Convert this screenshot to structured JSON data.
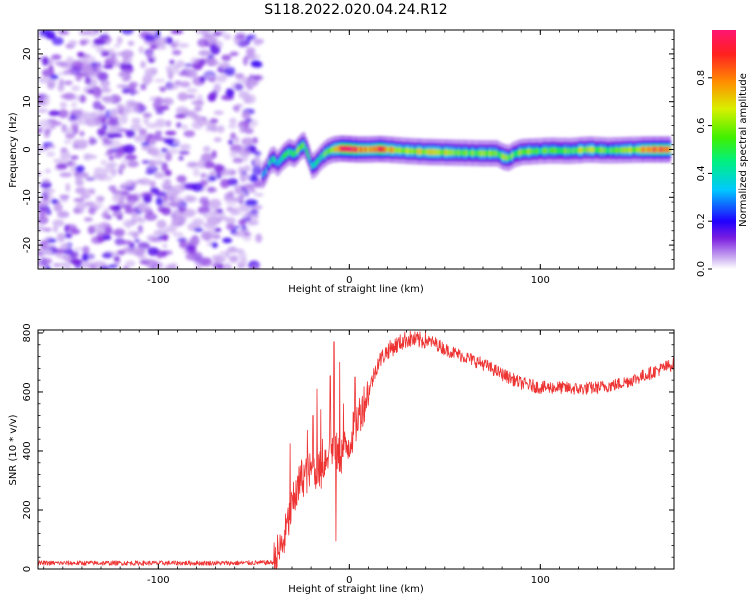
{
  "figure": {
    "title": "S118.2022.020.04.24.R12"
  },
  "chart_data": [
    {
      "type": "heatmap",
      "xlabel": "Height of straight line (km)",
      "ylabel": "Frequency (Hz)",
      "xlim": [
        -163,
        170
      ],
      "ylim": [
        -25,
        25
      ],
      "x_ticks": [
        -100,
        0,
        100
      ],
      "x_tick_labels": [
        "-100",
        "0",
        "100"
      ],
      "y_ticks": [
        -20,
        -10,
        0,
        10,
        20
      ],
      "y_tick_labels": [
        "-20",
        "-10",
        "0",
        "10",
        "20"
      ],
      "noise_region_x": [
        -163,
        -47
      ],
      "ridge": [
        {
          "x": -46,
          "y": -5.5,
          "a": 0.25
        },
        {
          "x": -44,
          "y": -4.5,
          "a": 0.3
        },
        {
          "x": -42,
          "y": -2.5,
          "a": 0.35
        },
        {
          "x": -40,
          "y": -2.0,
          "a": 0.4
        },
        {
          "x": -38,
          "y": -3.0,
          "a": 0.35
        },
        {
          "x": -35,
          "y": -1.5,
          "a": 0.45
        },
        {
          "x": -32,
          "y": -0.5,
          "a": 0.45
        },
        {
          "x": -29,
          "y": -1.0,
          "a": 0.5
        },
        {
          "x": -26,
          "y": 0.5,
          "a": 0.55
        },
        {
          "x": -24,
          "y": 1.0,
          "a": 0.5
        },
        {
          "x": -22,
          "y": -1.0,
          "a": 0.45
        },
        {
          "x": -20,
          "y": -3.5,
          "a": 0.4
        },
        {
          "x": -18,
          "y": -3.0,
          "a": 0.4
        },
        {
          "x": -15,
          "y": -1.5,
          "a": 0.45
        },
        {
          "x": -12,
          "y": -0.5,
          "a": 0.55
        },
        {
          "x": -9,
          "y": 0.0,
          "a": 0.65
        },
        {
          "x": -5,
          "y": 0.2,
          "a": 0.9
        },
        {
          "x": 0,
          "y": 0.1,
          "a": 1.0
        },
        {
          "x": 4,
          "y": 0.0,
          "a": 0.85
        },
        {
          "x": 10,
          "y": 0.0,
          "a": 0.75
        },
        {
          "x": 15,
          "y": 0.1,
          "a": 0.9
        },
        {
          "x": 20,
          "y": 0.0,
          "a": 0.75
        },
        {
          "x": 30,
          "y": -0.3,
          "a": 0.6
        },
        {
          "x": 40,
          "y": -0.5,
          "a": 0.65
        },
        {
          "x": 50,
          "y": -0.6,
          "a": 0.6
        },
        {
          "x": 60,
          "y": -0.7,
          "a": 0.55
        },
        {
          "x": 70,
          "y": -0.8,
          "a": 0.55
        },
        {
          "x": 77,
          "y": -0.8,
          "a": 0.55
        },
        {
          "x": 80,
          "y": -1.5,
          "a": 0.55
        },
        {
          "x": 83,
          "y": -1.8,
          "a": 0.6
        },
        {
          "x": 86,
          "y": -1.0,
          "a": 0.55
        },
        {
          "x": 90,
          "y": -0.5,
          "a": 0.6
        },
        {
          "x": 95,
          "y": -0.4,
          "a": 0.55
        },
        {
          "x": 105,
          "y": -0.2,
          "a": 0.5
        },
        {
          "x": 115,
          "y": -0.3,
          "a": 0.55
        },
        {
          "x": 125,
          "y": 0.0,
          "a": 0.6
        },
        {
          "x": 135,
          "y": -0.2,
          "a": 0.55
        },
        {
          "x": 145,
          "y": -0.1,
          "a": 0.6
        },
        {
          "x": 155,
          "y": 0.0,
          "a": 0.75
        },
        {
          "x": 163,
          "y": 0.0,
          "a": 0.9
        },
        {
          "x": 168,
          "y": 0.0,
          "a": 0.8
        }
      ]
    },
    {
      "type": "colorbar",
      "label": "Normalized spectral amplitude",
      "range": [
        0,
        1
      ],
      "ticks": [
        0,
        0.2,
        0.4,
        0.6,
        0.8
      ],
      "tick_labels": [
        "0.0",
        "0.2",
        "0.4",
        "0.6",
        "0.8"
      ]
    },
    {
      "type": "line",
      "xlabel": "Height of straight line (km)",
      "ylabel": "SNR (10 * v/v)",
      "xlim": [
        -163,
        170
      ],
      "ylim": [
        0,
        810
      ],
      "x_ticks": [
        -100,
        0,
        100
      ],
      "x_tick_labels": [
        "-100",
        "0",
        "100"
      ],
      "y_ticks": [
        0,
        200,
        400,
        600,
        800
      ],
      "y_tick_labels": [
        "0",
        "200",
        "400",
        "600",
        "800"
      ],
      "color": "#ee3333",
      "x": [
        -163,
        -60,
        -40,
        -35,
        -30,
        -25,
        -20,
        -15,
        -10,
        -5,
        0,
        5,
        10,
        15,
        20,
        25,
        30,
        35,
        40,
        45,
        50,
        60,
        70,
        80,
        90,
        100,
        110,
        120,
        130,
        140,
        150,
        160,
        170
      ],
      "y": [
        20,
        20,
        22,
        80,
        210,
        310,
        330,
        330,
        420,
        380,
        430,
        520,
        600,
        700,
        740,
        760,
        780,
        775,
        775,
        765,
        745,
        720,
        695,
        660,
        630,
        615,
        615,
        610,
        615,
        625,
        645,
        670,
        695
      ],
      "spikes": [
        {
          "x": -31,
          "y": 425
        },
        {
          "x": -28,
          "y": 300
        },
        {
          "x": -22,
          "y": 470
        },
        {
          "x": -19,
          "y": 520
        },
        {
          "x": -17,
          "y": 610
        },
        {
          "x": -15,
          "y": 540
        },
        {
          "x": -14,
          "y": 440
        },
        {
          "x": -10,
          "y": 655
        },
        {
          "x": -8,
          "y": 770
        },
        {
          "x": -7,
          "y": 95
        },
        {
          "x": -5,
          "y": 700
        },
        {
          "x": -3,
          "y": 560
        },
        {
          "x": 0,
          "y": 380
        },
        {
          "x": 3,
          "y": 650
        }
      ]
    }
  ]
}
